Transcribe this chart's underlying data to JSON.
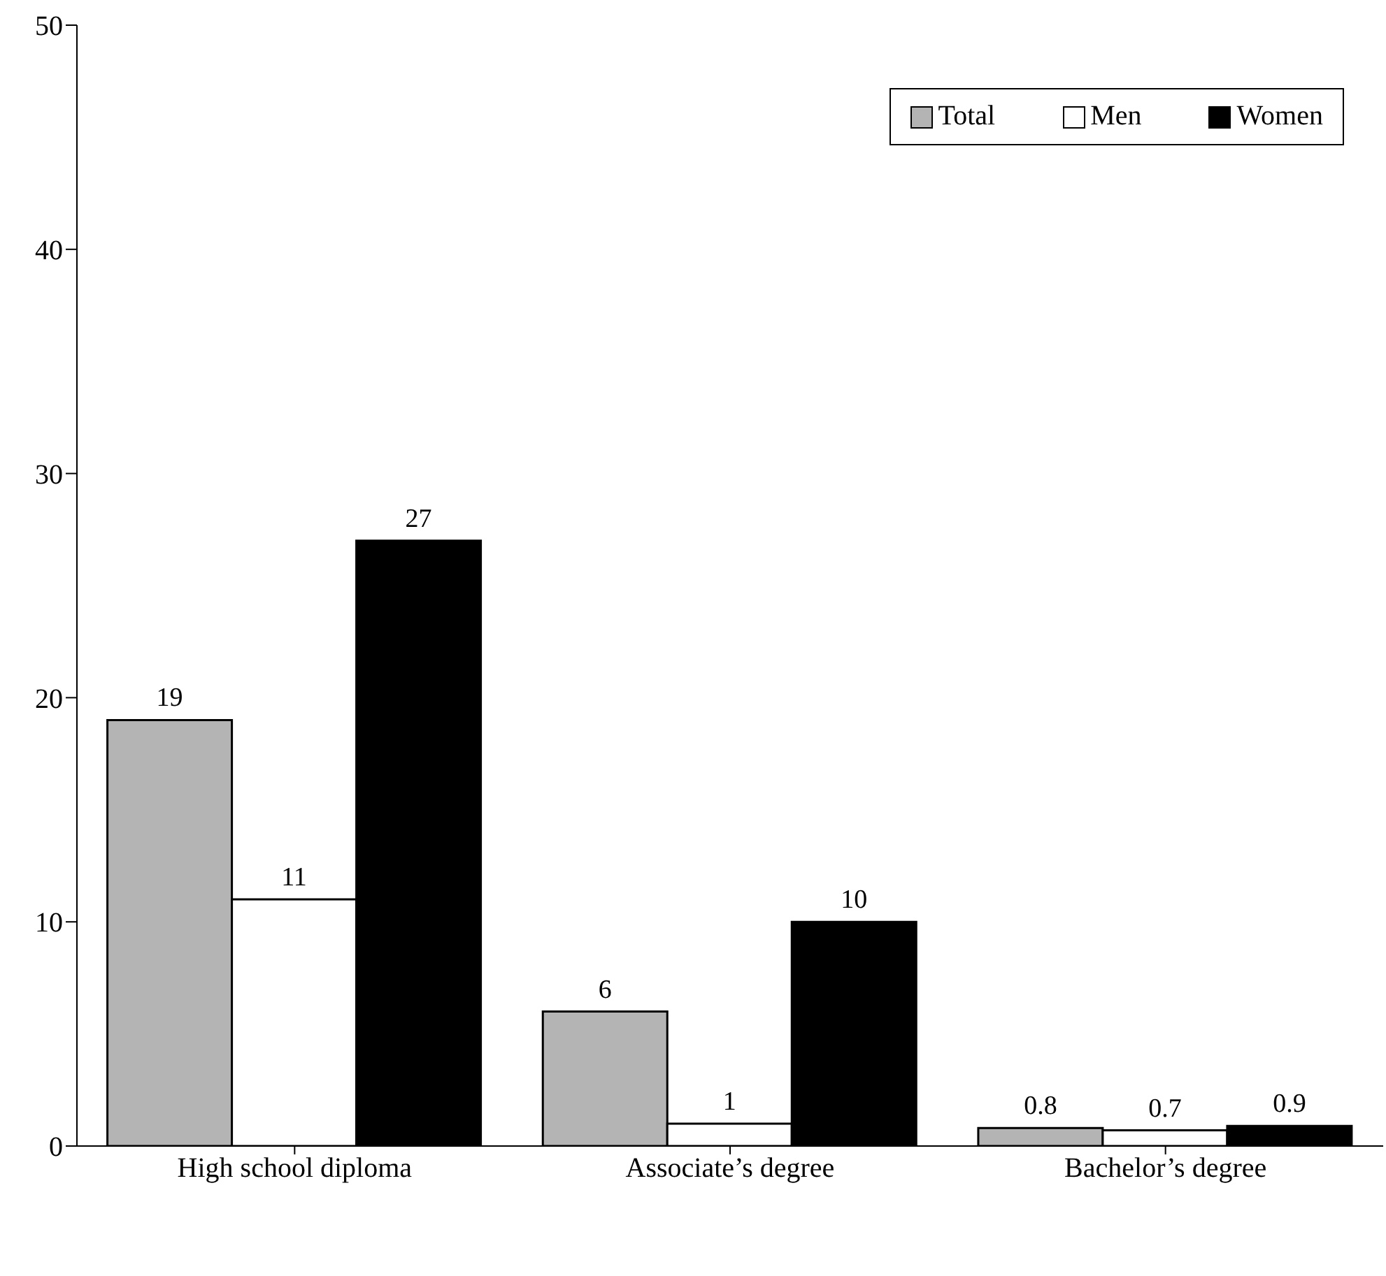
{
  "chart_data": {
    "type": "bar",
    "categories": [
      "High school diploma",
      "Associate’s degree",
      "Bachelor’s degree"
    ],
    "series": [
      {
        "name": "Total",
        "color": "#b4b4b4",
        "values": [
          19,
          6,
          0.8
        ]
      },
      {
        "name": "Men",
        "color": "#ffffff",
        "values": [
          11,
          1,
          0.7
        ]
      },
      {
        "name": "Women",
        "color": "#000000",
        "values": [
          27,
          10,
          0.9
        ]
      }
    ],
    "ylim": [
      0,
      50
    ],
    "yticks": [
      0,
      10,
      20,
      30,
      40,
      50
    ],
    "grid": false,
    "legend": "top right",
    "data_labels": true
  }
}
